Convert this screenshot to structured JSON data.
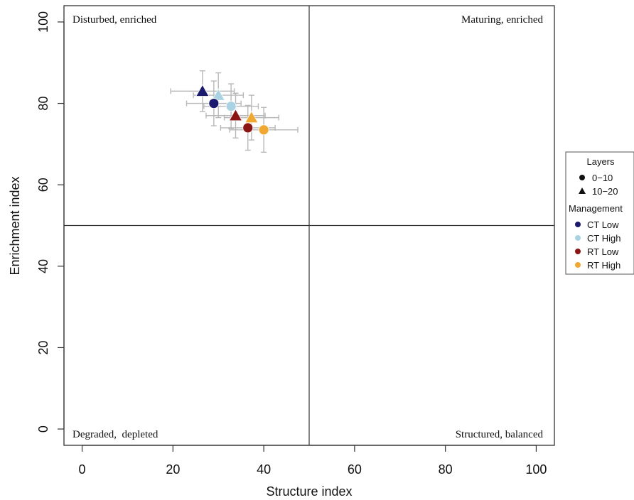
{
  "chart_data": {
    "type": "scatter",
    "xlabel": "Structure index",
    "ylabel": "Enrichment index",
    "xlim": [
      -4,
      104
    ],
    "ylim": [
      -4,
      104
    ],
    "x_ticks": [
      0,
      20,
      40,
      60,
      80,
      100
    ],
    "y_ticks": [
      0,
      20,
      40,
      60,
      80,
      100
    ],
    "reference_lines": {
      "x": 50,
      "y": 50
    },
    "quadrant_labels": {
      "top_left": "Disturbed, enriched",
      "top_right": "Maturing, enriched",
      "bottom_left": "Degraded,  depleted",
      "bottom_right": "Structured, balanced"
    },
    "legend": {
      "placement": "right",
      "layers_title": "Layers",
      "layers": [
        {
          "label": "0−10",
          "shape": "circle"
        },
        {
          "label": "10−20",
          "shape": "triangle"
        }
      ],
      "management_title": "Management",
      "management": [
        {
          "label": "CT Low",
          "color": "#1a1a6e"
        },
        {
          "label": "CT High",
          "color": "#a9d3e3"
        },
        {
          "label": "RT Low",
          "color": "#8b1414"
        },
        {
          "label": "RT High",
          "color": "#f0a830"
        }
      ]
    },
    "points": [
      {
        "management": "CT Low",
        "layer": "10−20",
        "x": 26.5,
        "y": 83.0,
        "x_err": 7.0,
        "y_err": 5.0
      },
      {
        "management": "CT High",
        "layer": "10−20",
        "x": 30.0,
        "y": 82.0,
        "x_err": 5.5,
        "y_err": 5.5
      },
      {
        "management": "CT Low",
        "layer": "0−10",
        "x": 29.0,
        "y": 80.0,
        "x_err": 6.0,
        "y_err": 5.5
      },
      {
        "management": "CT High",
        "layer": "0−10",
        "x": 32.8,
        "y": 79.3,
        "x_err": 6.0,
        "y_err": 5.5
      },
      {
        "management": "RT Low",
        "layer": "10−20",
        "x": 33.8,
        "y": 77.0,
        "x_err": 6.5,
        "y_err": 5.5
      },
      {
        "management": "RT High",
        "layer": "10−20",
        "x": 37.3,
        "y": 76.5,
        "x_err": 6.0,
        "y_err": 5.5
      },
      {
        "management": "RT Low",
        "layer": "0−10",
        "x": 36.5,
        "y": 74.0,
        "x_err": 6.0,
        "y_err": 5.5
      },
      {
        "management": "RT High",
        "layer": "0−10",
        "x": 40.0,
        "y": 73.5,
        "x_err": 7.5,
        "y_err": 5.5
      }
    ]
  }
}
